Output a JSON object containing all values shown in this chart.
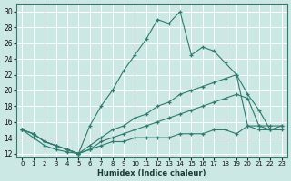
{
  "xlabel": "Humidex (Indice chaleur)",
  "background_color": "#cce8e4",
  "grid_color": "#b0d8d2",
  "line_color": "#2d7a6e",
  "xlim": [
    -0.5,
    23.5
  ],
  "ylim": [
    11.5,
    31
  ],
  "xticks": [
    0,
    1,
    2,
    3,
    4,
    5,
    6,
    7,
    8,
    9,
    10,
    11,
    12,
    13,
    14,
    15,
    16,
    17,
    18,
    19,
    20,
    21,
    22,
    23
  ],
  "yticks": [
    12,
    14,
    16,
    18,
    20,
    22,
    24,
    26,
    28,
    30
  ],
  "curve1_x": [
    0,
    1,
    2,
    3,
    4,
    5,
    6,
    7,
    8,
    9,
    10,
    11,
    12,
    13,
    14,
    15,
    16,
    17,
    18,
    19,
    20,
    21,
    22
  ],
  "curve1_y": [
    15,
    14,
    13,
    12.5,
    12.2,
    12,
    15.5,
    18,
    20,
    22.5,
    24.5,
    26.5,
    29,
    28.5,
    30,
    24.5,
    25.5,
    25,
    23.5,
    22,
    15.5,
    15,
    15
  ],
  "curve2_x": [
    0,
    1,
    2,
    3,
    4,
    5,
    6,
    7,
    8,
    9,
    10,
    11,
    12,
    13,
    14,
    15,
    16,
    17,
    18,
    19,
    20,
    21,
    22,
    23
  ],
  "curve2_y": [
    15,
    14.5,
    13.5,
    13,
    12.5,
    12,
    13,
    14,
    15,
    15.5,
    16.5,
    17,
    18,
    18.5,
    19.5,
    20,
    20.5,
    21,
    21.5,
    22,
    19.5,
    17.5,
    15,
    15.5
  ],
  "curve3_x": [
    0,
    1,
    2,
    3,
    4,
    5,
    6,
    7,
    8,
    9,
    10,
    11,
    12,
    13,
    14,
    15,
    16,
    17,
    18,
    19,
    20,
    21,
    22,
    23
  ],
  "curve3_y": [
    15,
    14.5,
    13.5,
    13,
    12.5,
    12,
    12.5,
    13.5,
    14,
    14.5,
    15,
    15.5,
    16,
    16.5,
    17,
    17.5,
    18,
    18.5,
    19,
    19.5,
    19,
    15.5,
    15,
    15
  ],
  "curve4_x": [
    0,
    1,
    2,
    3,
    4,
    5,
    6,
    7,
    8,
    9,
    10,
    11,
    12,
    13,
    14,
    15,
    16,
    17,
    18,
    19,
    20,
    21,
    22,
    23
  ],
  "curve4_y": [
    15,
    14.5,
    13.5,
    13,
    12.5,
    12,
    12.5,
    13,
    13.5,
    13.5,
    14,
    14,
    14,
    14,
    14.5,
    14.5,
    14.5,
    15,
    15,
    14.5,
    15.5,
    15.5,
    15.5,
    15.5
  ]
}
